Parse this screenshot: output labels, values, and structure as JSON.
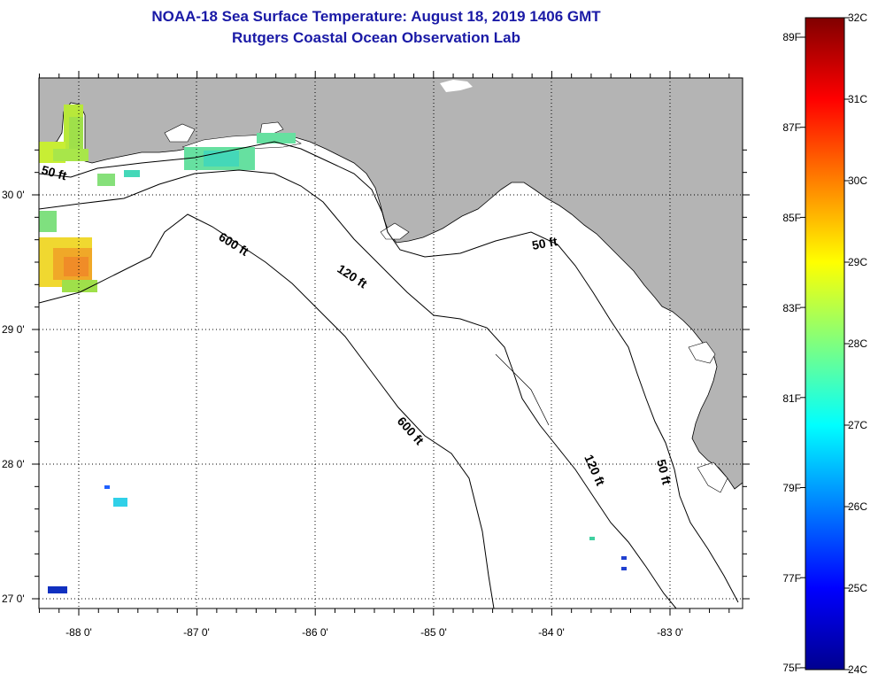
{
  "title": {
    "line1": "NOAA-18 Sea Surface Temperature:  August 18, 2019 1406 GMT",
    "line2": "Rutgers Coastal Ocean Observation Lab"
  },
  "map": {
    "longitude_labels": [
      "-88 0'",
      "-87 0'",
      "-86 0'",
      "-85 0'",
      "-84 0'",
      "-83 0'"
    ],
    "latitude_labels": [
      "30 0'",
      "29 0'",
      "28 0'",
      "27 0'"
    ],
    "contour_labels": [
      "50 ft",
      "600 ft",
      "120 ft",
      "50 ft",
      "600 ft",
      "120 ft",
      "50 ft"
    ],
    "land_color": "#b4b4b4",
    "water_color": "#ffffff"
  },
  "colorbar": {
    "celsius_labels": [
      "32C",
      "31C",
      "30C",
      "29C",
      "28C",
      "27C",
      "26C",
      "25C",
      "24C"
    ],
    "fahrenheit_labels": [
      "89F",
      "87F",
      "85F",
      "83F",
      "81F",
      "79F",
      "77F",
      "75F"
    ]
  }
}
